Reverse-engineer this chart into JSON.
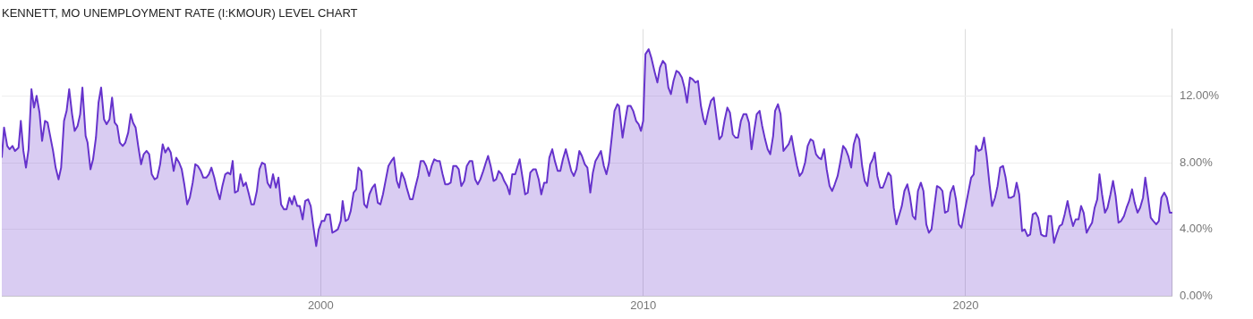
{
  "chart_data": {
    "type": "area",
    "title": "KENNETT, MO UNEMPLOYMENT RATE (I:KMOUR) LEVEL CHART",
    "x": [
      1990.11,
      1990.18,
      1990.28,
      1990.35,
      1990.44,
      1990.52,
      1990.63,
      1990.7,
      1990.78,
      1990.86,
      1990.94,
      1991.03,
      1991.11,
      1991.19,
      1991.28,
      1991.36,
      1991.45,
      1991.53,
      1991.7,
      1991.78,
      1991.87,
      1991.95,
      1992.04,
      1992.12,
      1992.2,
      1992.29,
      1992.37,
      1992.46,
      1992.54,
      1992.61,
      1992.71,
      1992.77,
      1992.86,
      1992.94,
      1993.03,
      1993.11,
      1993.19,
      1993.28,
      1993.36,
      1993.45,
      1993.53,
      1993.61,
      1993.69,
      1993.77,
      1993.86,
      1993.94,
      1994.03,
      1994.11,
      1994.18,
      1994.26,
      1994.34,
      1994.43,
      1994.51,
      1994.6,
      1994.68,
      1994.76,
      1994.85,
      1994.93,
      1995.02,
      1995.1,
      1995.18,
      1995.27,
      1995.35,
      1995.44,
      1995.52,
      1995.61,
      1995.69,
      1995.77,
      1995.86,
      1995.94,
      1996.03,
      1996.11,
      1996.19,
      1996.28,
      1996.36,
      1996.45,
      1996.53,
      1996.61,
      1996.7,
      1996.78,
      1996.87,
      1996.95,
      1997.04,
      1997.12,
      1997.2,
      1997.27,
      1997.34,
      1997.43,
      1997.51,
      1997.6,
      1997.68,
      1997.76,
      1997.85,
      1997.93,
      1998.02,
      1998.1,
      1998.18,
      1998.27,
      1998.35,
      1998.44,
      1998.52,
      1998.61,
      1998.69,
      1998.77,
      1998.86,
      1998.94,
      1999.03,
      1999.11,
      1999.18,
      1999.27,
      1999.35,
      1999.44,
      1999.52,
      1999.61,
      1999.69,
      1999.77,
      1999.86,
      1999.94,
      2000.03,
      2000.11,
      2000.18,
      2000.23,
      2000.28,
      2000.36,
      2000.45,
      2000.53,
      2000.62,
      2000.68,
      2000.77,
      2000.85,
      2000.93,
      2001.02,
      2001.1,
      2001.17,
      2001.26,
      2001.35,
      2001.43,
      2001.51,
      2001.6,
      2001.68,
      2001.77,
      2001.85,
      2001.93,
      2002.02,
      2002.1,
      2002.19,
      2002.27,
      2002.36,
      2002.43,
      2002.51,
      2002.6,
      2002.68,
      2002.77,
      2002.85,
      2002.93,
      2003.02,
      2003.1,
      2003.19,
      2003.27,
      2003.36,
      2003.44,
      2003.52,
      2003.61,
      2003.69,
      2003.78,
      2003.86,
      2003.94,
      2004.03,
      2004.11,
      2004.2,
      2004.28,
      2004.36,
      2004.45,
      2004.53,
      2004.62,
      2004.7,
      2004.79,
      2004.87,
      2004.95,
      2005.04,
      2005.12,
      2005.19,
      2005.27,
      2005.36,
      2005.44,
      2005.52,
      2005.61,
      2005.69,
      2005.78,
      2005.86,
      2005.94,
      2006.03,
      2006.17,
      2006.25,
      2006.34,
      2006.42,
      2006.5,
      2006.59,
      2006.67,
      2006.76,
      2006.84,
      2006.93,
      2007.01,
      2007.09,
      2007.18,
      2007.26,
      2007.35,
      2007.43,
      2007.51,
      2007.6,
      2007.68,
      2007.77,
      2007.85,
      2007.93,
      2008.02,
      2008.1,
      2008.19,
      2008.27,
      2008.36,
      2008.44,
      2008.52,
      2008.61,
      2008.69,
      2008.78,
      2008.86,
      2008.94,
      2009.03,
      2009.11,
      2009.2,
      2009.25,
      2009.36,
      2009.44,
      2009.52,
      2009.61,
      2009.69,
      2009.78,
      2009.86,
      2009.93,
      2010.0,
      2010.07,
      2010.17,
      2010.25,
      2010.36,
      2010.44,
      2010.52,
      2010.61,
      2010.69,
      2010.78,
      2010.86,
      2010.94,
      2011.03,
      2011.11,
      2011.2,
      2011.28,
      2011.36,
      2011.45,
      2011.53,
      2011.62,
      2011.7,
      2011.79,
      2011.87,
      2011.93,
      2012.02,
      2012.1,
      2012.19,
      2012.27,
      2012.36,
      2012.44,
      2012.52,
      2012.61,
      2012.69,
      2012.78,
      2012.86,
      2012.94,
      2013.03,
      2013.11,
      2013.2,
      2013.28,
      2013.36,
      2013.44,
      2013.52,
      2013.61,
      2013.69,
      2013.78,
      2013.86,
      2013.94,
      2014.03,
      2014.09,
      2014.18,
      2014.26,
      2014.35,
      2014.43,
      2014.51,
      2014.6,
      2014.68,
      2014.77,
      2014.85,
      2014.93,
      2015.02,
      2015.1,
      2015.19,
      2015.27,
      2015.36,
      2015.44,
      2015.52,
      2015.61,
      2015.69,
      2015.78,
      2015.86,
      2015.94,
      2016.03,
      2016.11,
      2016.2,
      2016.28,
      2016.36,
      2016.45,
      2016.53,
      2016.62,
      2016.7,
      2016.79,
      2016.87,
      2016.95,
      2017.04,
      2017.12,
      2017.18,
      2017.26,
      2017.35,
      2017.43,
      2017.51,
      2017.6,
      2017.68,
      2017.77,
      2017.85,
      2017.93,
      2018.02,
      2018.1,
      2018.19,
      2018.27,
      2018.36,
      2018.44,
      2018.52,
      2018.61,
      2018.69,
      2018.78,
      2018.86,
      2018.94,
      2019.03,
      2019.11,
      2019.2,
      2019.28,
      2019.36,
      2019.45,
      2019.53,
      2019.62,
      2019.7,
      2019.79,
      2019.87,
      2019.95,
      2020.11,
      2020.17,
      2020.25,
      2020.32,
      2020.4,
      2020.49,
      2020.57,
      2020.65,
      2020.74,
      2020.82,
      2020.91,
      2020.99,
      2021.07,
      2021.16,
      2021.24,
      2021.33,
      2021.41,
      2021.5,
      2021.58,
      2021.66,
      2021.75,
      2021.83,
      2021.92,
      2022.0,
      2022.08,
      2022.17,
      2022.25,
      2022.34,
      2022.42,
      2022.5,
      2022.57,
      2022.65,
      2022.74,
      2022.82,
      2022.91,
      2022.99,
      2023.07,
      2023.16,
      2023.24,
      2023.33,
      2023.41,
      2023.5,
      2023.58,
      2023.66,
      2023.75,
      2023.83,
      2023.92,
      2024.0,
      2024.08,
      2024.15,
      2024.23,
      2024.32,
      2024.4,
      2024.49,
      2024.57,
      2024.65,
      2024.74,
      2024.82,
      2024.91,
      2024.99,
      2025.07,
      2025.16,
      2025.24,
      2025.33,
      2025.41,
      2025.5,
      2025.57,
      2025.65,
      2025.74,
      2025.82,
      2025.91,
      2025.99,
      2026.07,
      2026.16,
      2026.24,
      2026.33,
      2026.41
    ],
    "series": [
      {
        "color": "#6633cc",
        "values": [
          8.3,
          10.1,
          9.0,
          8.8,
          9.0,
          8.7,
          8.9,
          10.5,
          8.7,
          7.7,
          8.8,
          12.4,
          11.3,
          12.0,
          11.0,
          9.3,
          10.5,
          10.4,
          8.7,
          7.7,
          7.0,
          7.7,
          10.5,
          11.1,
          12.4,
          10.9,
          9.9,
          10.2,
          10.9,
          12.5,
          9.6,
          9.2,
          7.6,
          8.2,
          9.5,
          11.6,
          12.5,
          10.6,
          10.3,
          10.6,
          11.9,
          10.4,
          10.2,
          9.2,
          9.0,
          9.2,
          9.8,
          10.9,
          10.4,
          10.1,
          9.0,
          7.9,
          8.5,
          8.7,
          8.5,
          7.3,
          7.0,
          7.1,
          7.9,
          9.1,
          8.6,
          8.9,
          8.6,
          7.5,
          8.3,
          8.0,
          7.6,
          6.7,
          5.5,
          5.9,
          6.8,
          7.9,
          7.8,
          7.5,
          7.1,
          7.1,
          7.3,
          7.7,
          7.1,
          6.4,
          5.8,
          6.6,
          7.3,
          7.4,
          7.3,
          8.1,
          6.2,
          6.3,
          7.3,
          6.6,
          6.8,
          6.2,
          5.5,
          5.5,
          6.3,
          7.6,
          8.0,
          7.9,
          6.8,
          6.5,
          7.3,
          6.5,
          7.1,
          5.5,
          5.2,
          5.2,
          5.9,
          5.5,
          6.0,
          5.4,
          5.4,
          4.6,
          5.7,
          5.8,
          5.4,
          4.2,
          3.0,
          4.0,
          4.5,
          4.5,
          4.9,
          4.9,
          4.9,
          3.8,
          3.9,
          4.0,
          4.5,
          5.7,
          4.5,
          4.6,
          5.1,
          6.2,
          6.4,
          7.7,
          7.5,
          5.5,
          5.3,
          6.1,
          6.5,
          6.7,
          5.6,
          5.5,
          6.1,
          7.0,
          7.8,
          8.1,
          8.3,
          6.9,
          6.5,
          7.4,
          7.0,
          6.4,
          5.8,
          5.8,
          6.5,
          7.2,
          8.1,
          8.1,
          7.8,
          7.2,
          7.8,
          8.2,
          8.1,
          8.1,
          7.3,
          6.7,
          6.7,
          6.8,
          7.8,
          7.8,
          7.6,
          6.6,
          6.9,
          7.8,
          8.1,
          8.1,
          7.0,
          6.7,
          7.0,
          7.5,
          8.0,
          8.4,
          7.8,
          6.9,
          7.0,
          7.5,
          7.3,
          6.9,
          6.6,
          6.1,
          7.3,
          7.3,
          8.2,
          7.2,
          6.1,
          6.2,
          7.4,
          7.6,
          7.6,
          7.0,
          6.1,
          6.8,
          6.8,
          8.3,
          8.8,
          8.1,
          7.5,
          7.5,
          8.2,
          8.8,
          8.2,
          7.5,
          7.2,
          7.6,
          8.7,
          8.4,
          7.9,
          7.7,
          6.2,
          7.4,
          8.1,
          8.4,
          8.7,
          7.8,
          7.3,
          8.0,
          9.6,
          11.1,
          11.5,
          11.4,
          9.5,
          10.5,
          11.4,
          11.4,
          11.1,
          10.5,
          10.3,
          9.9,
          10.5,
          14.5,
          14.8,
          14.3,
          13.4,
          12.8,
          13.7,
          14.1,
          13.9,
          12.5,
          12.1,
          12.9,
          13.5,
          13.4,
          13.1,
          12.5,
          11.6,
          13.1,
          13.0,
          12.8,
          12.9,
          11.4,
          10.6,
          10.3,
          11.1,
          11.7,
          11.9,
          10.7,
          9.4,
          9.6,
          10.5,
          11.3,
          11.0,
          9.7,
          9.5,
          9.5,
          10.5,
          10.9,
          10.9,
          10.4,
          8.8,
          9.9,
          10.9,
          11.1,
          10.2,
          9.4,
          8.8,
          8.5,
          9.6,
          11.1,
          11.5,
          10.9,
          8.7,
          8.9,
          9.1,
          9.6,
          8.7,
          7.8,
          7.2,
          7.4,
          8.0,
          9.0,
          9.4,
          9.3,
          8.5,
          8.3,
          8.2,
          8.8,
          7.6,
          6.6,
          6.3,
          6.7,
          7.2,
          8.0,
          9.0,
          8.8,
          8.4,
          7.7,
          9.1,
          9.7,
          9.4,
          7.8,
          6.9,
          6.6,
          7.9,
          8.2,
          8.6,
          7.2,
          6.5,
          6.5,
          6.9,
          7.4,
          7.2,
          5.3,
          4.3,
          4.8,
          5.4,
          6.3,
          6.7,
          6.0,
          4.8,
          4.6,
          6.3,
          6.8,
          6.3,
          4.3,
          3.8,
          4.0,
          5.4,
          6.6,
          6.5,
          6.3,
          5.0,
          5.1,
          6.2,
          6.6,
          5.8,
          4.3,
          4.1,
          4.9,
          6.5,
          7.1,
          7.3,
          9.0,
          8.7,
          8.8,
          9.5,
          8.4,
          6.7,
          5.4,
          5.9,
          6.6,
          7.7,
          7.8,
          7.1,
          5.9,
          5.9,
          6.0,
          6.8,
          6.1,
          3.9,
          4.0,
          3.6,
          3.7,
          4.9,
          5.0,
          4.7,
          3.7,
          3.6,
          3.6,
          4.8,
          4.8,
          3.2,
          3.7,
          4.2,
          4.3,
          4.9,
          5.7,
          4.9,
          4.2,
          4.6,
          4.6,
          5.4,
          5.0,
          3.8,
          4.1,
          4.4,
          5.3,
          5.8,
          7.3,
          6.1,
          5.0,
          5.3,
          6.1,
          6.9,
          6.0,
          4.4,
          4.5,
          4.8,
          5.3,
          5.7,
          6.4,
          5.6,
          5.0,
          5.3,
          5.9,
          7.1,
          6.0,
          4.7,
          4.5,
          4.3,
          4.5,
          5.9,
          6.2,
          5.9,
          5.0,
          5.0
        ]
      }
    ],
    "xlim": [
      1990.11,
      2026.41
    ],
    "xticks": [
      2000,
      2010,
      2020
    ],
    "ylim": [
      0,
      16
    ],
    "yticks": [
      {
        "value": 0,
        "label": "0.00%"
      },
      {
        "value": 4,
        "label": "4.00%"
      },
      {
        "value": 8,
        "label": "8.00%"
      },
      {
        "value": 12,
        "label": "12.00%"
      }
    ],
    "grid": true,
    "legend": false
  }
}
